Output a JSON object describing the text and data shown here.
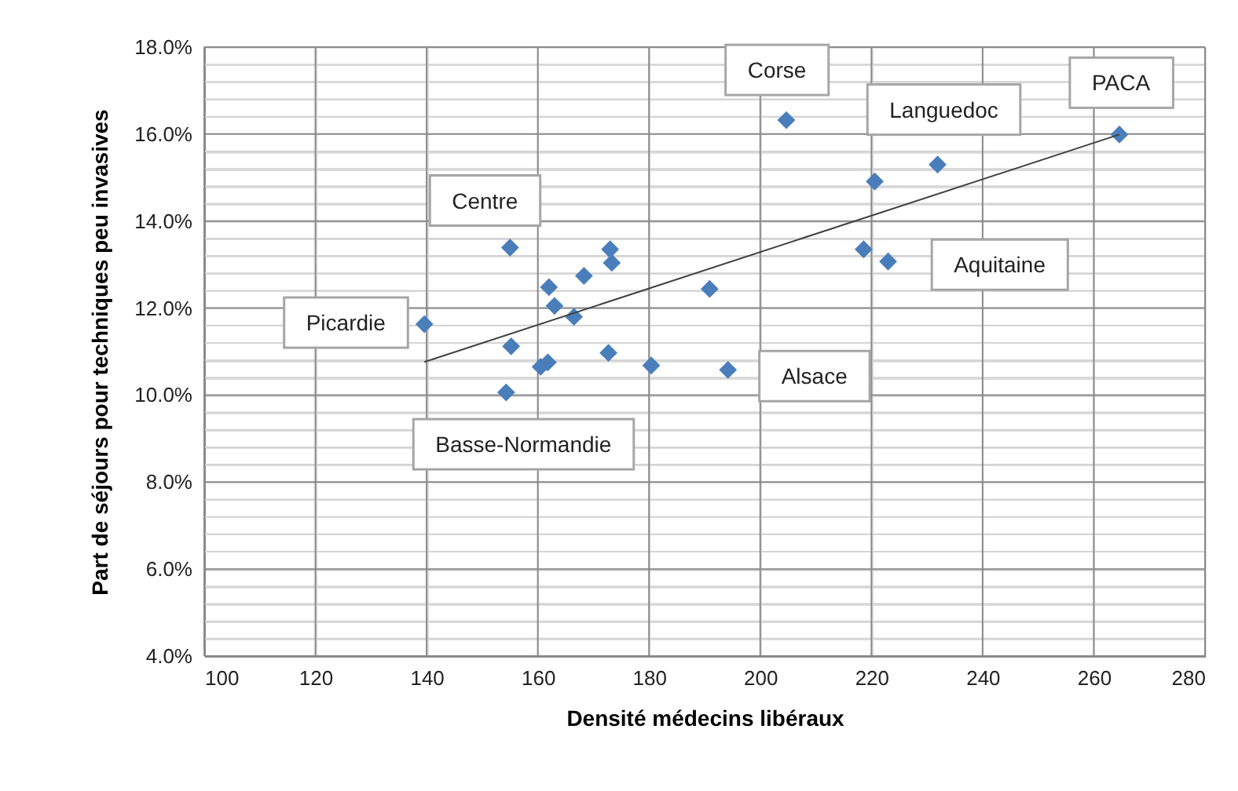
{
  "chart_data": {
    "type": "scatter",
    "xlabel": "Densité médecins libéraux",
    "ylabel": "Part de séjours pour techniques peu invasives",
    "xlim": [
      100,
      280
    ],
    "xticks": [
      100,
      120,
      140,
      160,
      180,
      200,
      220,
      240,
      260,
      280
    ],
    "ylim": [
      4,
      18
    ],
    "yticks": [
      {
        "value": 4,
        "label": "4.0%"
      },
      {
        "value": 4.4,
        "label": null
      },
      {
        "value": 4.8,
        "label": null
      },
      {
        "value": 5.2,
        "label": null
      },
      {
        "value": 5.6,
        "label": null
      },
      {
        "value": 6,
        "label": "6.0%"
      },
      {
        "value": 6.4,
        "label": null
      },
      {
        "value": 6.8,
        "label": null
      },
      {
        "value": 7.2,
        "label": null
      },
      {
        "value": 7.6,
        "label": null
      },
      {
        "value": 8,
        "label": "8.0%"
      },
      {
        "value": 8.4,
        "label": null
      },
      {
        "value": 8.8,
        "label": null
      },
      {
        "value": 9.2,
        "label": null
      },
      {
        "value": 9.6,
        "label": null
      },
      {
        "value": 10,
        "label": "10.0%"
      },
      {
        "value": 10.4,
        "label": null
      },
      {
        "value": 10.8,
        "label": null
      },
      {
        "value": 11.2,
        "label": null
      },
      {
        "value": 11.6,
        "label": null
      },
      {
        "value": 12,
        "label": "12.0%"
      },
      {
        "value": 12.4,
        "label": null
      },
      {
        "value": 12.8,
        "label": null
      },
      {
        "value": 13.2,
        "label": null
      },
      {
        "value": 13.6,
        "label": null
      },
      {
        "value": 14,
        "label": "14.0%"
      },
      {
        "value": 14.4,
        "label": null
      },
      {
        "value": 14.8,
        "label": null
      },
      {
        "value": 15.2,
        "label": null
      },
      {
        "value": 15.6,
        "label": null
      },
      {
        "value": 16,
        "label": "16.0%"
      },
      {
        "value": 16.4,
        "label": null
      },
      {
        "value": 16.8,
        "label": null
      },
      {
        "value": 17.2,
        "label": null
      },
      {
        "value": 17.6,
        "label": null
      },
      {
        "value": 18,
        "label": "18.0%"
      }
    ],
    "grid": true,
    "series": [
      {
        "color": "#4a7ebb",
        "marker": "diamond",
        "x": [
          139.6,
          155.0,
          162.0,
          163.0,
          166.5,
          168.3,
          173.0,
          173.3,
          155.2,
          160.5,
          161.8,
          172.7,
          180.4,
          154.3,
          190.9,
          194.2,
          204.7,
          220.6,
          231.9,
          218.6,
          223.0,
          264.6
        ],
        "values": [
          11.63,
          13.39,
          12.48,
          12.05,
          11.8,
          12.74,
          13.35,
          13.04,
          11.12,
          10.65,
          10.75,
          10.97,
          10.68,
          10.06,
          12.44,
          10.58,
          16.32,
          14.91,
          15.3,
          13.35,
          13.07,
          15.99
        ]
      },
      {
        "type": "line",
        "color": "#404040",
        "x": [
          139.6,
          264.6
        ],
        "values": [
          10.76,
          15.99
        ]
      }
    ],
    "annotations": [
      {
        "text": "Picardie",
        "x": 139.6,
        "y": 11.63
      },
      {
        "text": "Centre",
        "x": 155.0,
        "y": 13.39
      },
      {
        "text": "Basse-Normandie",
        "x": 154.3,
        "y": 10.06
      },
      {
        "text": "Alsace",
        "x": 194.2,
        "y": 10.58
      },
      {
        "text": "Aquitaine",
        "x": 223.0,
        "y": 13.07
      },
      {
        "text": "Corse",
        "x": 204.7,
        "y": 16.32
      },
      {
        "text": "Languedoc",
        "x": 231.9,
        "y": 15.3
      },
      {
        "text": "PACA",
        "x": 264.6,
        "y": 15.99
      }
    ]
  }
}
